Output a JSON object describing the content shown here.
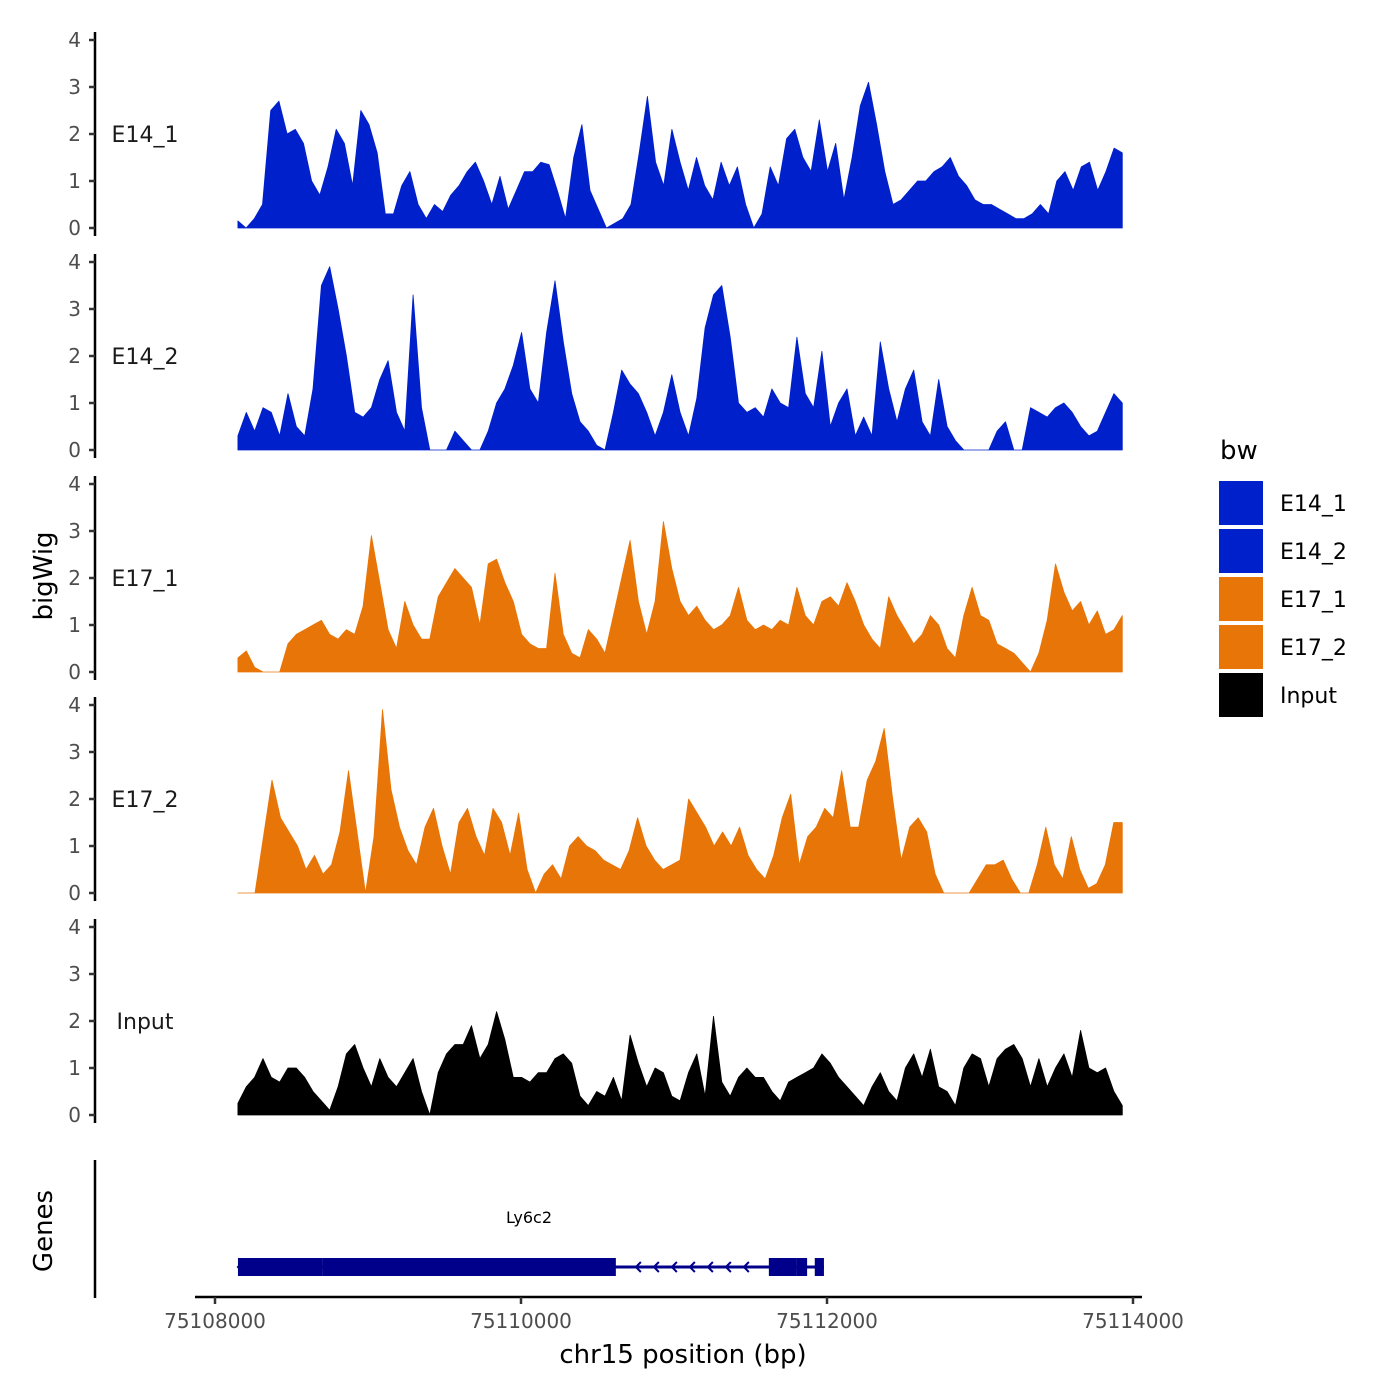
{
  "chart_data": {
    "type": "area",
    "title": "",
    "ylabel": "bigWig",
    "xlabel": "chr15 position (bp)",
    "xlim": [
      75107900,
      75114100
    ],
    "ylim": [
      0,
      4
    ],
    "yticks": [
      0,
      1,
      2,
      3,
      4
    ],
    "xticks": [
      75108000,
      75110000,
      75112000,
      75114000
    ],
    "xtick_labels": [
      "75108000",
      "75110000",
      "75112000",
      "75114000"
    ],
    "data_range": [
      75108150,
      75113930
    ],
    "legend": {
      "title": "bw",
      "position": "right",
      "entries": [
        {
          "name": "E14_1",
          "color": "#0020CC"
        },
        {
          "name": "E14_2",
          "color": "#0020CC"
        },
        {
          "name": "E17_1",
          "color": "#E87507"
        },
        {
          "name": "E17_2",
          "color": "#E87507"
        },
        {
          "name": "Input",
          "color": "#000000"
        }
      ]
    },
    "series": [
      {
        "name": "E14_1",
        "color": "#0020CC",
        "values": [
          0.15,
          0.0,
          0.2,
          0.5,
          2.5,
          2.7,
          2.0,
          2.1,
          1.8,
          1.0,
          0.7,
          1.3,
          2.1,
          1.8,
          0.9,
          2.5,
          2.2,
          1.6,
          0.3,
          0.3,
          0.9,
          1.2,
          0.5,
          0.2,
          0.5,
          0.35,
          0.7,
          0.9,
          1.2,
          1.4,
          1.0,
          0.5,
          1.1,
          0.4,
          0.8,
          1.2,
          1.2,
          1.4,
          1.35,
          0.8,
          0.2,
          1.5,
          2.2,
          0.8,
          0.4,
          0.0,
          0.1,
          0.2,
          0.5,
          1.6,
          2.8,
          1.4,
          0.9,
          2.1,
          1.4,
          0.8,
          1.5,
          0.9,
          0.6,
          1.4,
          0.9,
          1.3,
          0.5,
          0.0,
          0.3,
          1.3,
          0.9,
          1.9,
          2.1,
          1.5,
          1.2,
          2.3,
          1.2,
          1.8,
          0.6,
          1.5,
          2.6,
          3.1,
          2.2,
          1.2,
          0.5,
          0.6,
          0.8,
          1.0,
          1.0,
          1.2,
          1.3,
          1.5,
          1.1,
          0.9,
          0.6,
          0.5,
          0.5,
          0.4,
          0.3,
          0.2,
          0.2,
          0.3,
          0.5,
          0.3,
          1.0,
          1.2,
          0.8,
          1.3,
          1.4,
          0.8,
          1.2,
          1.7,
          1.6
        ]
      },
      {
        "name": "E14_2",
        "color": "#0020CC",
        "values": [
          0.3,
          0.8,
          0.4,
          0.9,
          0.8,
          0.3,
          1.2,
          0.5,
          0.3,
          1.3,
          3.5,
          3.9,
          3.0,
          2.0,
          0.8,
          0.7,
          0.9,
          1.5,
          1.9,
          0.8,
          0.4,
          3.3,
          0.9,
          0.0,
          0.0,
          0.0,
          0.4,
          0.2,
          0.0,
          0.0,
          0.4,
          1.0,
          1.3,
          1.8,
          2.5,
          1.3,
          1.0,
          2.5,
          3.6,
          2.3,
          1.2,
          0.6,
          0.4,
          0.1,
          0.0,
          0.8,
          1.7,
          1.4,
          1.2,
          0.8,
          0.3,
          0.8,
          1.6,
          0.8,
          0.3,
          1.1,
          2.6,
          3.3,
          3.5,
          2.4,
          1.0,
          0.8,
          0.9,
          0.7,
          1.3,
          1.0,
          0.9,
          2.4,
          1.2,
          0.9,
          2.1,
          0.5,
          1.0,
          1.3,
          0.3,
          0.7,
          0.3,
          2.3,
          1.3,
          0.6,
          1.3,
          1.7,
          0.6,
          0.3,
          1.5,
          0.5,
          0.2,
          0.0,
          0.0,
          0.0,
          0.0,
          0.4,
          0.6,
          0.0,
          0.0,
          0.9,
          0.8,
          0.7,
          0.9,
          1.0,
          0.8,
          0.5,
          0.3,
          0.4,
          0.8,
          1.2,
          1.0
        ]
      },
      {
        "name": "E17_1",
        "color": "#E87507",
        "values": [
          0.3,
          0.45,
          0.1,
          0.0,
          0.0,
          0.0,
          0.6,
          0.8,
          0.9,
          1.0,
          1.1,
          0.8,
          0.7,
          0.9,
          0.8,
          1.4,
          2.9,
          1.9,
          0.9,
          0.5,
          1.5,
          1.0,
          0.7,
          0.7,
          1.6,
          1.9,
          2.2,
          2.0,
          1.8,
          1.0,
          2.3,
          2.4,
          1.9,
          1.5,
          0.8,
          0.6,
          0.5,
          0.5,
          2.1,
          0.8,
          0.4,
          0.3,
          0.9,
          0.7,
          0.4,
          1.2,
          2.0,
          2.8,
          1.5,
          0.8,
          1.5,
          3.2,
          2.2,
          1.5,
          1.2,
          1.4,
          1.1,
          0.9,
          1.0,
          1.2,
          1.8,
          1.1,
          0.9,
          1.0,
          0.9,
          1.1,
          1.0,
          1.8,
          1.2,
          1.0,
          1.5,
          1.6,
          1.4,
          1.9,
          1.5,
          1.0,
          0.7,
          0.5,
          1.6,
          1.2,
          0.9,
          0.6,
          0.8,
          1.2,
          1.0,
          0.5,
          0.3,
          1.2,
          1.8,
          1.2,
          1.1,
          0.6,
          0.5,
          0.4,
          0.2,
          0.0,
          0.4,
          1.1,
          2.3,
          1.7,
          1.3,
          1.5,
          1.0,
          1.3,
          0.8,
          0.9,
          1.2
        ]
      },
      {
        "name": "E17_2",
        "color": "#E87507",
        "values": [
          0.0,
          0.0,
          0.0,
          1.2,
          2.4,
          1.6,
          1.3,
          1.0,
          0.5,
          0.8,
          0.4,
          0.6,
          1.3,
          2.6,
          1.3,
          0.0,
          1.2,
          3.9,
          2.2,
          1.4,
          0.9,
          0.6,
          1.4,
          1.8,
          1.0,
          0.4,
          1.5,
          1.8,
          1.2,
          0.8,
          1.8,
          1.5,
          0.8,
          1.7,
          0.5,
          0.0,
          0.4,
          0.6,
          0.3,
          1.0,
          1.2,
          1.0,
          0.9,
          0.7,
          0.6,
          0.5,
          0.9,
          1.6,
          1.0,
          0.7,
          0.5,
          0.6,
          0.7,
          2.0,
          1.7,
          1.4,
          1.0,
          1.3,
          1.0,
          1.4,
          0.8,
          0.5,
          0.3,
          0.8,
          1.6,
          2.1,
          0.6,
          1.2,
          1.4,
          1.8,
          1.6,
          2.6,
          1.4,
          1.4,
          2.4,
          2.8,
          3.5,
          2.0,
          0.7,
          1.4,
          1.6,
          1.3,
          0.4,
          0.0,
          0.0,
          0.0,
          0.0,
          0.3,
          0.6,
          0.6,
          0.7,
          0.3,
          0.0,
          0.0,
          0.6,
          1.4,
          0.6,
          0.3,
          1.2,
          0.5,
          0.1,
          0.2,
          0.6,
          1.5,
          1.5
        ]
      },
      {
        "name": "Input",
        "color": "#000000",
        "values": [
          0.25,
          0.6,
          0.8,
          1.2,
          0.8,
          0.7,
          1.0,
          1.0,
          0.8,
          0.5,
          0.3,
          0.1,
          0.6,
          1.3,
          1.5,
          1.0,
          0.6,
          1.2,
          0.8,
          0.6,
          0.9,
          1.2,
          0.5,
          0.0,
          0.9,
          1.3,
          1.5,
          1.5,
          1.9,
          1.2,
          1.5,
          2.2,
          1.6,
          0.8,
          0.8,
          0.7,
          0.9,
          0.9,
          1.2,
          1.3,
          1.1,
          0.4,
          0.2,
          0.5,
          0.4,
          0.8,
          0.3,
          1.7,
          1.1,
          0.6,
          1.0,
          0.9,
          0.4,
          0.3,
          0.9,
          1.3,
          0.4,
          2.1,
          0.7,
          0.4,
          0.8,
          1.0,
          0.8,
          0.8,
          0.5,
          0.3,
          0.7,
          0.8,
          0.9,
          1.0,
          1.3,
          1.1,
          0.8,
          0.6,
          0.4,
          0.2,
          0.6,
          0.9,
          0.5,
          0.3,
          1.0,
          1.3,
          0.8,
          1.4,
          0.6,
          0.5,
          0.2,
          1.0,
          1.3,
          1.2,
          0.6,
          1.2,
          1.4,
          1.5,
          1.2,
          0.6,
          1.2,
          0.6,
          1.0,
          1.3,
          0.8,
          1.8,
          1.0,
          0.9,
          1.0,
          0.5,
          0.2
        ]
      }
    ],
    "genes_track": {
      "ylabel": "Genes",
      "color": "#00008B",
      "gene_name": "Ly6c2",
      "strand": "-",
      "span": [
        75108150,
        75111980
      ],
      "thick_exons": [
        [
          75108150,
          75108700
        ],
        [
          75108700,
          75110500
        ],
        [
          75111620,
          75111800
        ]
      ],
      "thin_exons": [
        [
          75110500,
          75110620
        ],
        [
          75111800,
          75111870
        ],
        [
          75111920,
          75111980
        ]
      ]
    }
  }
}
